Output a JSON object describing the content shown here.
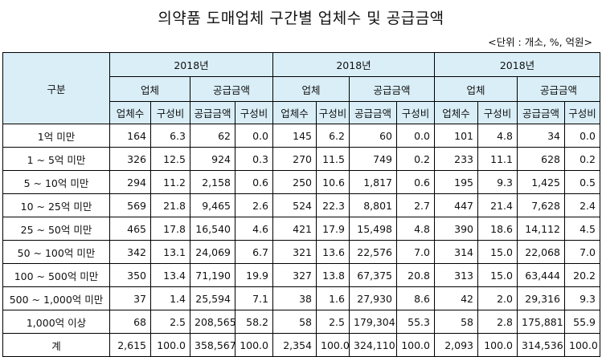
{
  "title": "의약품 도매업체 구간별 업체수 및 공급금액",
  "unit_note": "<단위 : 개소, %, 억원>",
  "header": {
    "category": "구분",
    "years": [
      "2018년",
      "2018년",
      "2018년"
    ],
    "groups": [
      "업체",
      "공급금액"
    ],
    "columns": [
      "업체수",
      "구성비",
      "공급금액",
      "구성비"
    ]
  },
  "rows": [
    {
      "label": "1억 미만",
      "values": [
        "164",
        "6.3",
        "62",
        "0.0",
        "145",
        "6.2",
        "60",
        "0.0",
        "101",
        "4.8",
        "34",
        "0.0"
      ]
    },
    {
      "label": "1 ~ 5억 미만",
      "values": [
        "326",
        "12.5",
        "924",
        "0.3",
        "270",
        "11.5",
        "749",
        "0.2",
        "233",
        "11.1",
        "628",
        "0.2"
      ]
    },
    {
      "label": "5 ~ 10억 미만",
      "values": [
        "294",
        "11.2",
        "2,158",
        "0.6",
        "250",
        "10.6",
        "1,817",
        "0.6",
        "195",
        "9.3",
        "1,425",
        "0.5"
      ]
    },
    {
      "label": "10 ~ 25억 미만",
      "values": [
        "569",
        "21.8",
        "9,465",
        "2.6",
        "524",
        "22.3",
        "8,801",
        "2.7",
        "447",
        "21.4",
        "7,628",
        "2.4"
      ]
    },
    {
      "label": "25 ~ 50억 미만",
      "values": [
        "465",
        "17.8",
        "16,540",
        "4.6",
        "421",
        "17.9",
        "15,498",
        "4.8",
        "390",
        "18.6",
        "14,112",
        "4.5"
      ]
    },
    {
      "label": "50 ~ 100억 미만",
      "values": [
        "342",
        "13.1",
        "24,069",
        "6.7",
        "321",
        "13.6",
        "22,576",
        "7.0",
        "314",
        "15.0",
        "22,068",
        "7.0"
      ]
    },
    {
      "label": "100 ~ 500억 미만",
      "values": [
        "350",
        "13.4",
        "71,190",
        "19.9",
        "327",
        "13.8",
        "67,375",
        "20.8",
        "313",
        "15.0",
        "63,444",
        "20.2"
      ]
    },
    {
      "label": "500 ~ 1,000억 미만",
      "values": [
        "37",
        "1.4",
        "25,594",
        "7.1",
        "38",
        "1.6",
        "27,930",
        "8.6",
        "42",
        "2.0",
        "29,316",
        "9.3"
      ]
    },
    {
      "label": "1,000억 이상",
      "values": [
        "68",
        "2.5",
        "208,565",
        "58.2",
        "58",
        "2.5",
        "179,304",
        "55.3",
        "58",
        "2.8",
        "175,881",
        "55.9"
      ]
    },
    {
      "label": "계",
      "values": [
        "2,615",
        "100.0",
        "358,567",
        "100.0",
        "2,354",
        "100.0",
        "324,110",
        "100.0",
        "2,093",
        "100.0",
        "314,536",
        "100.0"
      ]
    }
  ]
}
